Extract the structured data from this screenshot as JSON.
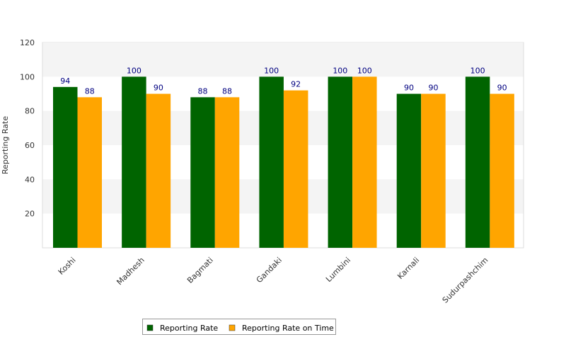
{
  "chart_data": {
    "type": "bar",
    "title": "",
    "xlabel": "",
    "ylabel": "Reporting Rate",
    "categories": [
      "Koshi",
      "Madhesh",
      "Bagmati",
      "Gandaki",
      "Lumbini",
      "Karnali",
      "Sudurpashchim"
    ],
    "series": [
      {
        "name": "Reporting Rate",
        "color": "#006400",
        "values": [
          94,
          100,
          88,
          100,
          100,
          90,
          100
        ]
      },
      {
        "name": "Reporting Rate on Time",
        "color": "#FFA500",
        "values": [
          88,
          90,
          88,
          92,
          100,
          90,
          90
        ]
      }
    ],
    "ylim": [
      0,
      120
    ],
    "yticks": [
      20,
      40,
      60,
      80,
      100,
      120
    ],
    "data_labels": true,
    "grid": "alternating horizontal bands",
    "band_color": "#f4f4f4",
    "legend_position": "bottom-center"
  }
}
